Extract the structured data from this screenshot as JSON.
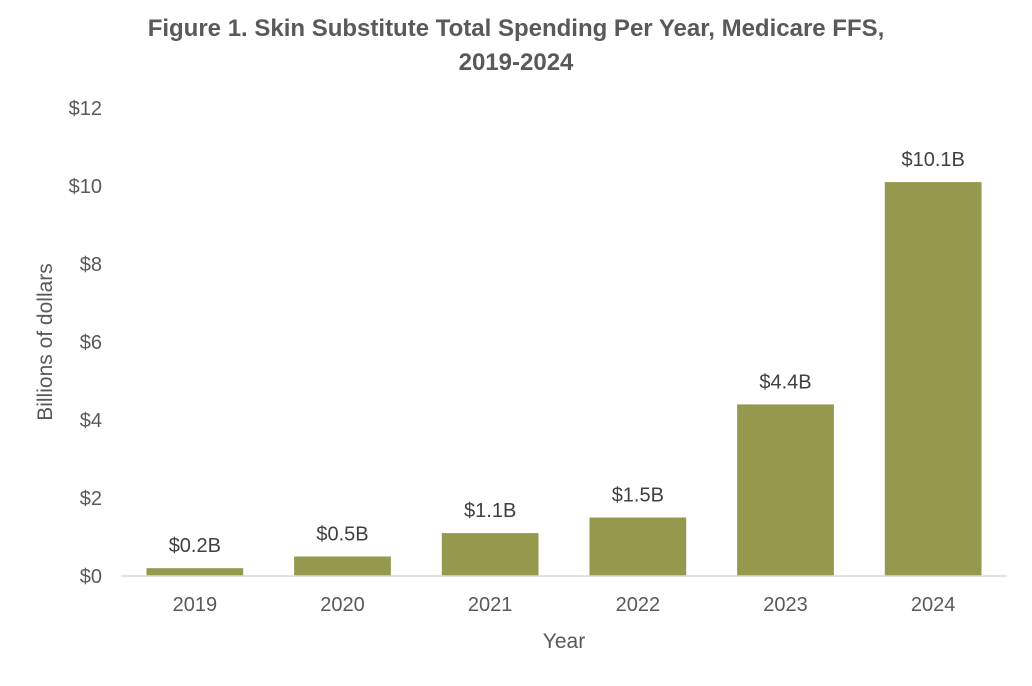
{
  "chart_data": {
    "type": "bar",
    "title_lines": [
      "Figure 1. Skin Substitute Total Spending Per Year, Medicare FFS,",
      "2019-2024"
    ],
    "categories": [
      "2019",
      "2020",
      "2021",
      "2022",
      "2023",
      "2024"
    ],
    "values": [
      0.2,
      0.5,
      1.1,
      1.5,
      4.4,
      10.1
    ],
    "data_labels": [
      "$0.2B",
      "$0.5B",
      "$1.1B",
      "$1.5B",
      "$4.4B",
      "$10.1B"
    ],
    "xlabel": "Year",
    "ylabel": "Billions of dollars",
    "ylim": [
      0,
      12
    ],
    "yticks": [
      0,
      2,
      4,
      6,
      8,
      10,
      12
    ],
    "ytick_labels": [
      "$0",
      "$2",
      "$4",
      "$6",
      "$8",
      "$10",
      "$12"
    ],
    "grid": false,
    "bar_color": "#94994E",
    "axis_color": "#D9D9D9"
  }
}
